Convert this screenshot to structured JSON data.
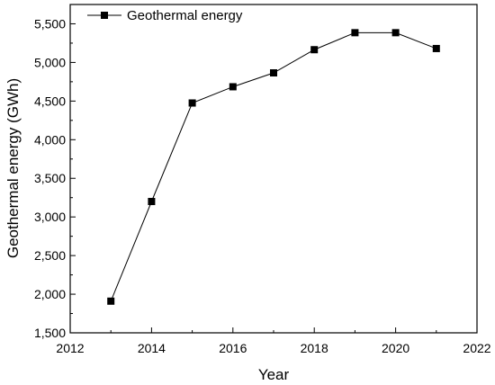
{
  "chart_data": {
    "type": "line",
    "title": "",
    "xlabel": "Year",
    "ylabel": "Geothermal energy (GWh)",
    "xlim": [
      2012,
      2022
    ],
    "ylim": [
      1500,
      5750
    ],
    "x_ticks": [
      2012,
      2014,
      2016,
      2018,
      2020,
      2022
    ],
    "x_tick_labels": [
      "2012",
      "2014",
      "2016",
      "2018",
      "2020",
      "2022"
    ],
    "y_ticks": [
      1500,
      2000,
      2500,
      3000,
      3500,
      4000,
      4500,
      5000,
      5500
    ],
    "y_tick_labels": [
      "1,500",
      "2,000",
      "2,500",
      "3,000",
      "3,500",
      "4,000",
      "4,500",
      "5,000",
      "5,500"
    ],
    "grid": false,
    "legend_position": "top-left",
    "series": [
      {
        "name": "Geothermal energy",
        "color": "#000000",
        "marker": "square",
        "x": [
          2013,
          2014,
          2015,
          2016,
          2017,
          2018,
          2019,
          2020,
          2021
        ],
        "y": [
          1910,
          3200,
          4475,
          4685,
          4865,
          5165,
          5385,
          5385,
          5180
        ]
      }
    ]
  }
}
